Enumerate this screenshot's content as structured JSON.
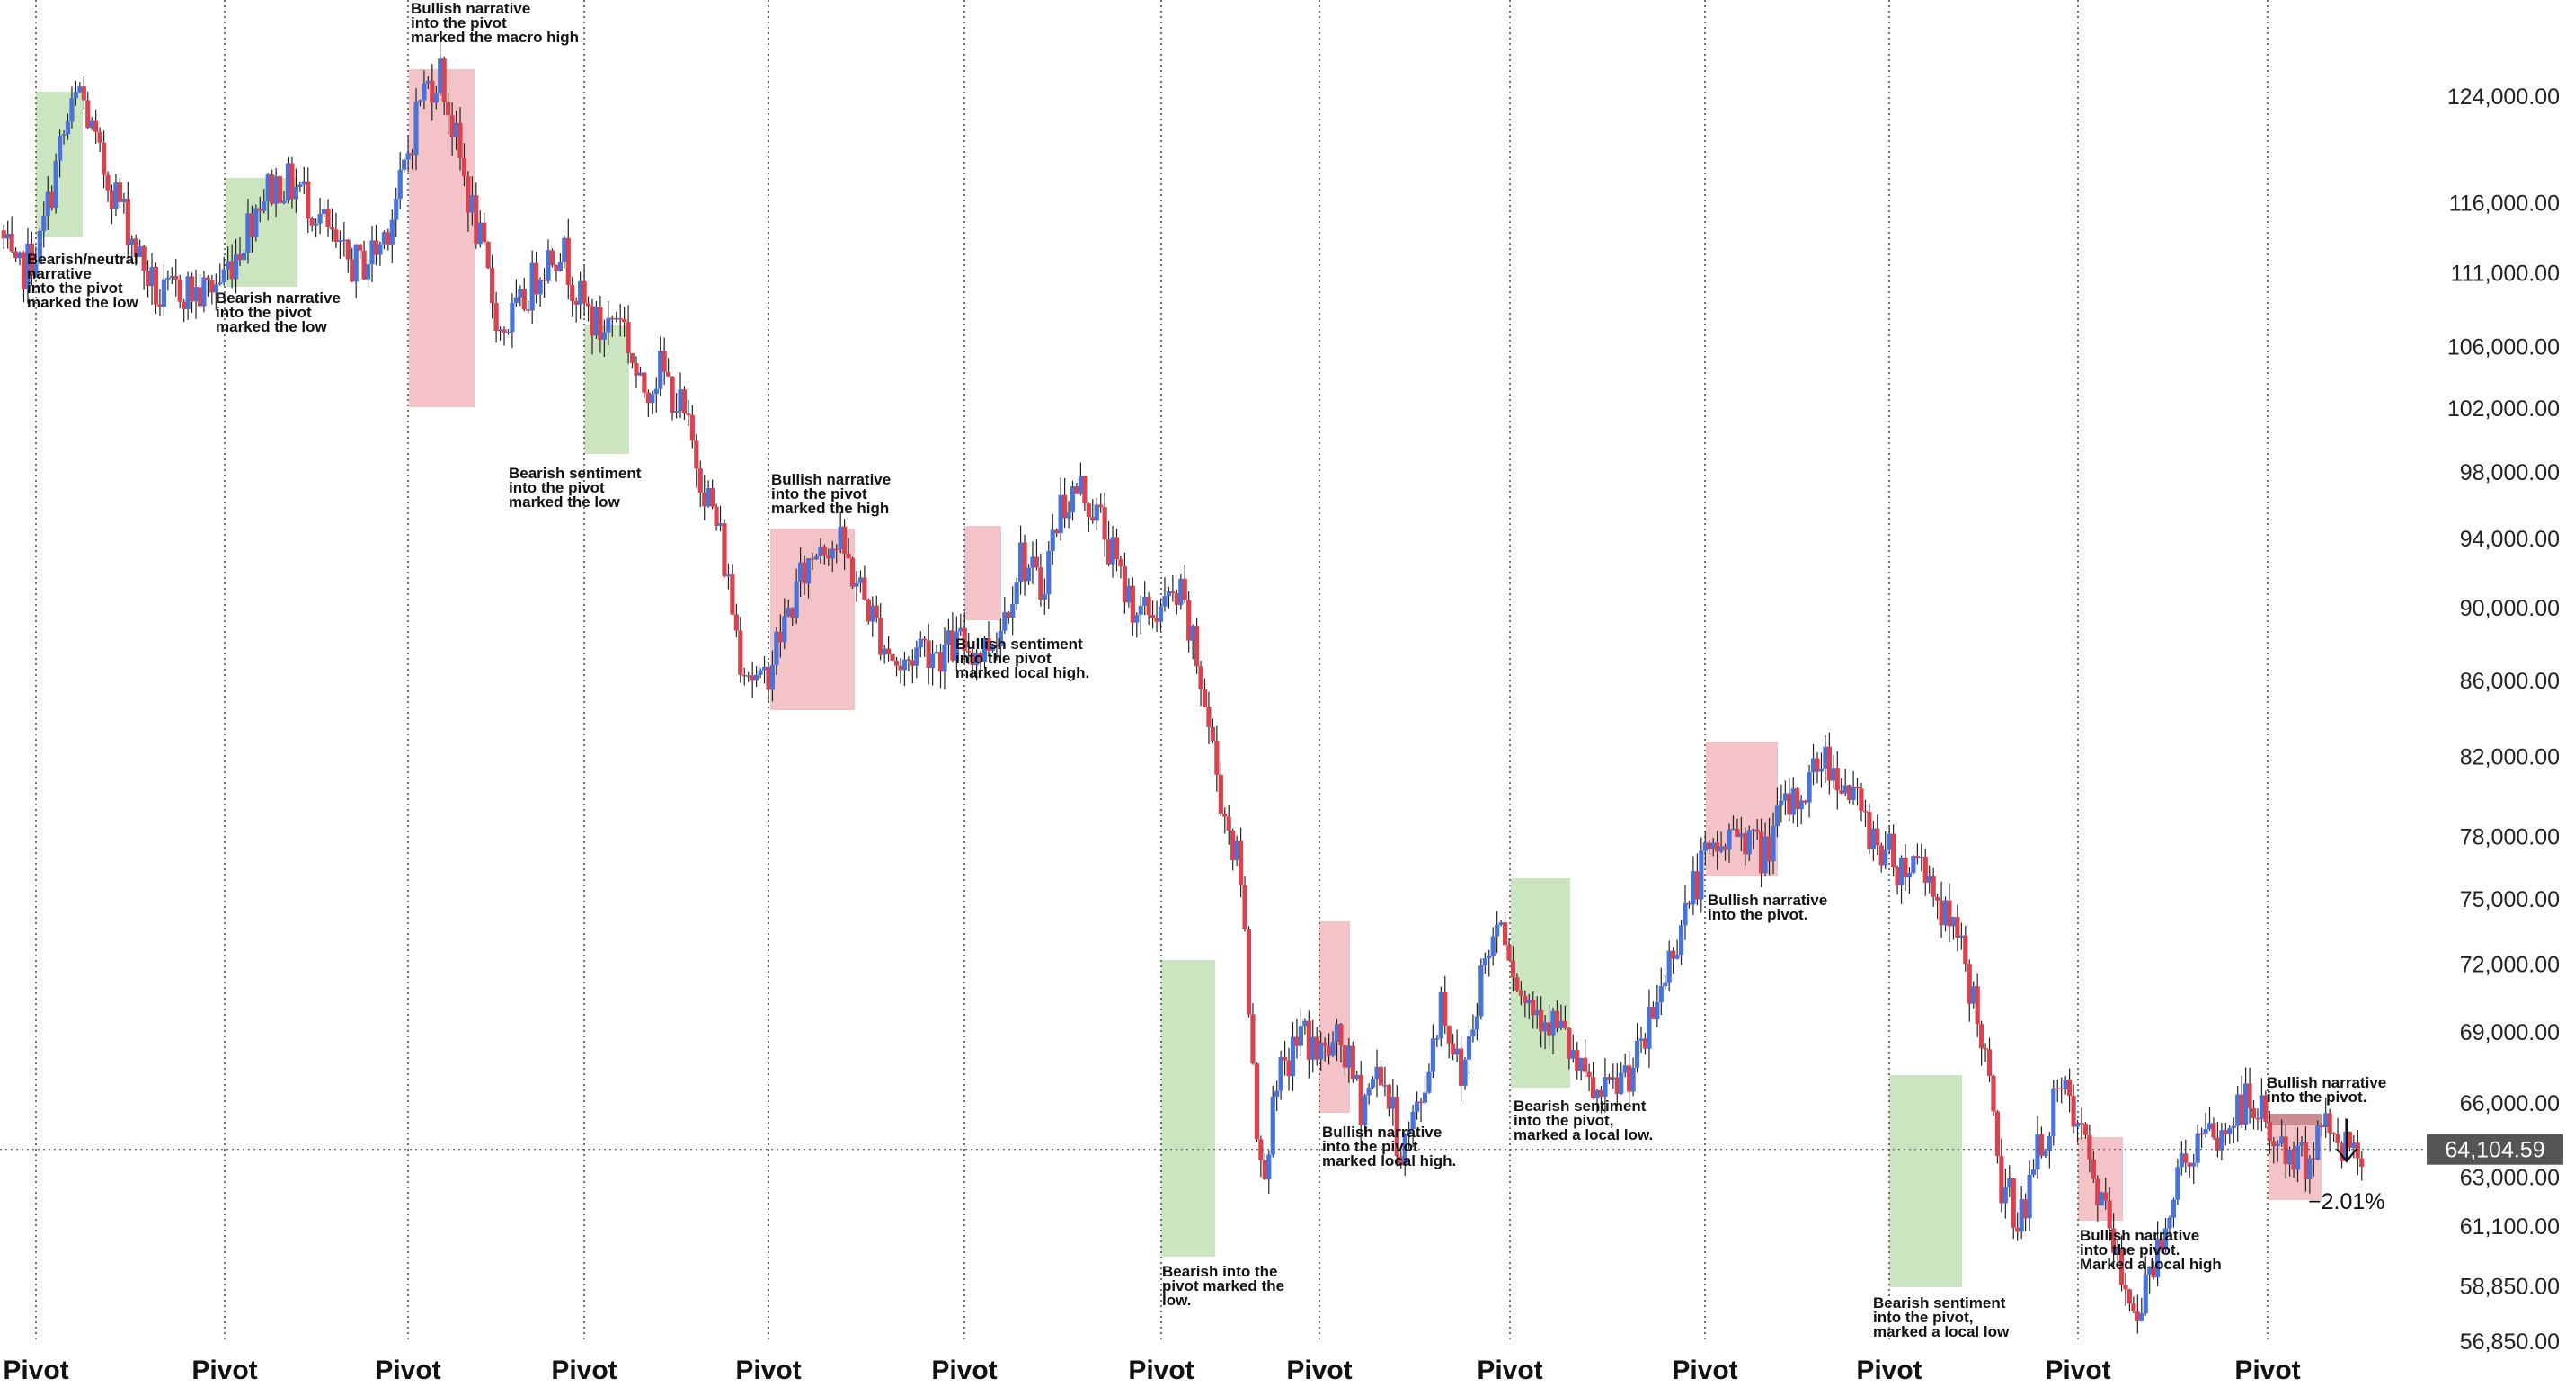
{
  "chart_data": {
    "type": "candlestick",
    "y_scale": "log",
    "ylim": [
      56000,
      132000
    ],
    "grid": "vertical dotted lines at each pivot",
    "colors": {
      "up_candle": "#4a73d9",
      "down_candle": "#d9434f",
      "green_zone": "#c9e4be",
      "red_zone": "#f3c0c4",
      "price_line": "#555555",
      "price_tag_bg": "#555555",
      "top_zone_dark": "#c98d91"
    },
    "y_ticks": [
      {
        "value": 124000,
        "label": "124,000.00"
      },
      {
        "value": 116000,
        "label": "116,000.00"
      },
      {
        "value": 111000,
        "label": "111,000.00"
      },
      {
        "value": 106000,
        "label": "106,000.00"
      },
      {
        "value": 102000,
        "label": "102,000.00"
      },
      {
        "value": 98000,
        "label": "98,000.00"
      },
      {
        "value": 94000,
        "label": "94,000.00"
      },
      {
        "value": 90000,
        "label": "90,000.00"
      },
      {
        "value": 86000,
        "label": "86,000.00"
      },
      {
        "value": 82000,
        "label": "82,000.00"
      },
      {
        "value": 78000,
        "label": "78,000.00"
      },
      {
        "value": 75000,
        "label": "75,000.00"
      },
      {
        "value": 72000,
        "label": "72,000.00"
      },
      {
        "value": 69000,
        "label": "69,000.00"
      },
      {
        "value": 66000,
        "label": "66,000.00"
      },
      {
        "value": 63000,
        "label": "63,000.00"
      },
      {
        "value": 61100,
        "label": "61,100.00"
      },
      {
        "value": 58850,
        "label": "58,850.00"
      },
      {
        "value": 56850,
        "label": "56,850.00"
      }
    ],
    "x_labels": [
      "Pivot",
      "Pivot",
      "Pivot",
      "Pivot",
      "Pivot",
      "Pivot",
      "Pivot",
      "Pivot",
      "Pivot",
      "Pivot",
      "Pivot",
      "Pivot",
      "Pivot"
    ],
    "current_price": {
      "value": 64104.59,
      "label": "64,104.59"
    },
    "projected_change": "−2.01%",
    "price_path": [
      [
        0,
        114000
      ],
      [
        8,
        110500
      ],
      [
        20,
        113000
      ],
      [
        30,
        120000
      ],
      [
        40,
        124500
      ],
      [
        50,
        119000
      ],
      [
        60,
        116000
      ],
      [
        70,
        112000
      ],
      [
        80,
        109000
      ],
      [
        90,
        110000
      ],
      [
        100,
        109500
      ],
      [
        110,
        110500
      ],
      [
        120,
        113000
      ],
      [
        130,
        116500
      ],
      [
        140,
        117500
      ],
      [
        150,
        117000
      ],
      [
        160,
        115000
      ],
      [
        170,
        112000
      ],
      [
        180,
        111500
      ],
      [
        190,
        113000
      ],
      [
        200,
        117000
      ],
      [
        210,
        124000
      ],
      [
        220,
        126000
      ],
      [
        230,
        119000
      ],
      [
        240,
        113000
      ],
      [
        250,
        107000
      ],
      [
        260,
        108500
      ],
      [
        270,
        111500
      ],
      [
        280,
        113000
      ],
      [
        290,
        109000
      ],
      [
        300,
        107000
      ],
      [
        310,
        108500
      ],
      [
        320,
        103000
      ],
      [
        330,
        104500
      ],
      [
        340,
        102000
      ],
      [
        350,
        98000
      ],
      [
        360,
        94000
      ],
      [
        370,
        87500
      ],
      [
        380,
        85500
      ],
      [
        390,
        88500
      ],
      [
        400,
        91500
      ],
      [
        410,
        94000
      ],
      [
        420,
        93500
      ],
      [
        430,
        91000
      ],
      [
        440,
        88500
      ],
      [
        450,
        86500
      ],
      [
        460,
        88000
      ],
      [
        470,
        87500
      ],
      [
        480,
        88000
      ],
      [
        490,
        87500
      ],
      [
        500,
        89000
      ],
      [
        510,
        93000
      ],
      [
        520,
        91000
      ],
      [
        530,
        96000
      ],
      [
        540,
        97000
      ],
      [
        550,
        95000
      ],
      [
        560,
        91500
      ],
      [
        570,
        89500
      ],
      [
        580,
        90000
      ],
      [
        590,
        90500
      ],
      [
        600,
        86000
      ],
      [
        610,
        80000
      ],
      [
        620,
        76000
      ],
      [
        630,
        63000
      ],
      [
        640,
        67000
      ],
      [
        650,
        69000
      ],
      [
        660,
        68000
      ],
      [
        670,
        68500
      ],
      [
        680,
        66000
      ],
      [
        690,
        67500
      ],
      [
        700,
        64000
      ],
      [
        710,
        66000
      ],
      [
        720,
        70500
      ],
      [
        730,
        67000
      ],
      [
        740,
        71500
      ],
      [
        750,
        74500
      ],
      [
        760,
        70500
      ],
      [
        770,
        70000
      ],
      [
        780,
        69000
      ],
      [
        790,
        67000
      ],
      [
        800,
        66000
      ],
      [
        810,
        67000
      ],
      [
        820,
        68000
      ],
      [
        830,
        71000
      ],
      [
        840,
        74000
      ],
      [
        850,
        76500
      ],
      [
        860,
        77500
      ],
      [
        870,
        78500
      ],
      [
        880,
        77000
      ],
      [
        890,
        79000
      ],
      [
        900,
        80000
      ],
      [
        910,
        82000
      ],
      [
        920,
        81000
      ],
      [
        930,
        79000
      ],
      [
        940,
        77500
      ],
      [
        950,
        76500
      ],
      [
        960,
        77000
      ],
      [
        970,
        74500
      ],
      [
        980,
        72500
      ],
      [
        990,
        69000
      ],
      [
        1000,
        62500
      ],
      [
        1010,
        61500
      ],
      [
        1020,
        64500
      ],
      [
        1030,
        66500
      ],
      [
        1040,
        64500
      ],
      [
        1050,
        62000
      ],
      [
        1060,
        59000
      ],
      [
        1070,
        58000
      ],
      [
        1080,
        61000
      ],
      [
        1090,
        63500
      ],
      [
        1100,
        64500
      ],
      [
        1110,
        64500
      ],
      [
        1120,
        66000
      ],
      [
        1130,
        65500
      ],
      [
        1140,
        64000
      ],
      [
        1150,
        63500
      ],
      [
        1160,
        65000
      ],
      [
        1170,
        64500
      ],
      [
        1180,
        64100
      ]
    ],
    "zones": [
      {
        "color": "green",
        "x0": 10,
        "x1": 23,
        "top": 124000,
        "bottom": 112500
      },
      {
        "color": "green",
        "x0": 63,
        "x1": 83,
        "top": 119000,
        "bottom": 109500
      },
      {
        "color": "red",
        "x0": 114,
        "x1": 132,
        "top": 125500,
        "bottom": 101500
      },
      {
        "color": "green",
        "x0": 163,
        "x1": 175,
        "top": 107000,
        "bottom": 98500
      },
      {
        "color": "red",
        "x0": 214,
        "x1": 238,
        "top": 94500,
        "bottom": 84500
      },
      {
        "color": "red",
        "x0": 269,
        "x1": 279,
        "top": 94500,
        "bottom": 89500
      },
      {
        "color": "green",
        "x0": 324,
        "x1": 339,
        "top": 72000,
        "bottom": 59700
      },
      {
        "color": "red",
        "x0": 368,
        "x1": 376,
        "top": 73500,
        "bottom": 65400
      },
      {
        "color": "green",
        "x0": 421,
        "x1": 437,
        "top": 75800,
        "bottom": 65900
      },
      {
        "color": "red",
        "x0": 475,
        "x1": 495,
        "top": 82700,
        "bottom": 75800
      },
      {
        "color": "green",
        "x0": 526,
        "x1": 547,
        "top": 67100,
        "bottom": 58300
      },
      {
        "color": "red",
        "x0": 579,
        "x1": 592,
        "top": 65700,
        "bottom": 61600
      },
      {
        "color": "red",
        "x0": 632,
        "x1": 647,
        "top": 65300,
        "bottom": 62500
      }
    ],
    "annotations": [
      {
        "lines": [
          "Bearish/neutral",
          "narrative",
          "into the pivot",
          "marked the low"
        ]
      },
      {
        "lines": [
          "Bearish narrative",
          "into the pivot",
          "marked the low"
        ]
      },
      {
        "lines": [
          "Bullish narrative",
          "into the pivot",
          "marked the macro high"
        ]
      },
      {
        "lines": [
          "Bearish sentiment",
          "into the pivot",
          "marked the low"
        ]
      },
      {
        "lines": [
          "Bullish narrative",
          "into the pivot",
          "marked the high"
        ]
      },
      {
        "lines": [
          "Bullish sentiment",
          "into the pivot",
          "marked local high."
        ]
      },
      {
        "lines": [
          "Bearish into the",
          "pivot marked the",
          "low."
        ]
      },
      {
        "lines": [
          "Bullish narrative",
          "into the pivot",
          "marked local high."
        ]
      },
      {
        "lines": [
          "Bearish sentiment",
          "into the pivot,",
          "marked a local low."
        ]
      },
      {
        "lines": [
          "Bullish narrative",
          "into the pivot."
        ]
      },
      {
        "lines": [
          "Bearish sentiment",
          "into the pivot,",
          "marked a local low"
        ]
      },
      {
        "lines": [
          "Bullish narrative",
          "into the pivot.",
          "Marked a local high"
        ]
      },
      {
        "lines": [
          "Bullish narrative",
          "into the pivot."
        ]
      }
    ]
  }
}
